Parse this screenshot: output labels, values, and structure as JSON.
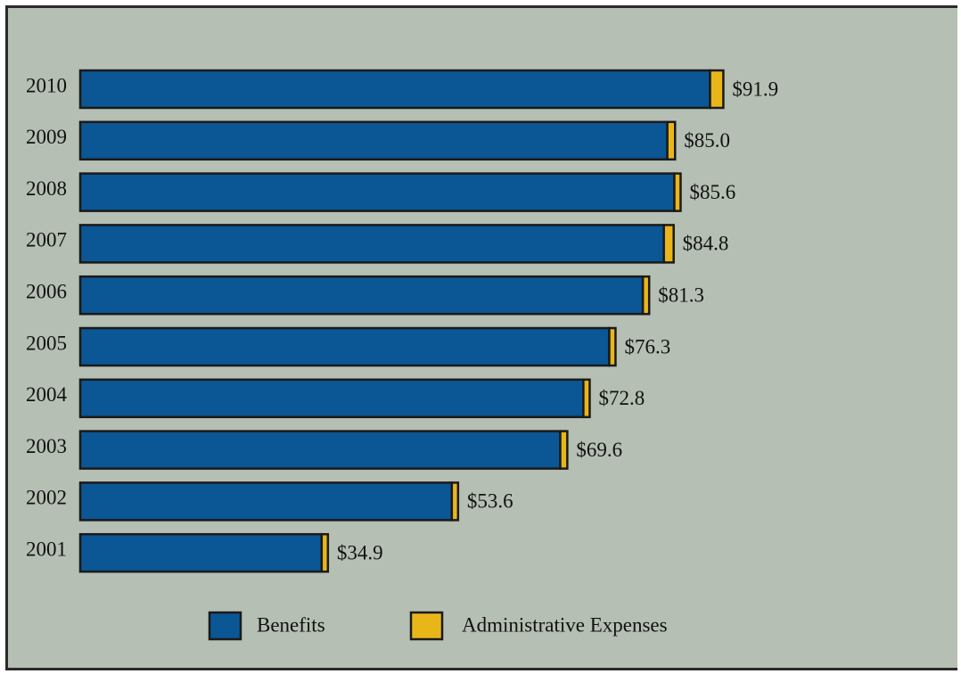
{
  "chart_data": {
    "type": "bar",
    "orientation": "horizontal",
    "stacked": true,
    "categories": [
      "2010",
      "2009",
      "2008",
      "2007",
      "2006",
      "2005",
      "2004",
      "2003",
      "2002",
      "2001"
    ],
    "series": [
      {
        "name": "Benefits",
        "values": [
          90.0,
          83.9,
          84.9,
          83.4,
          80.4,
          75.6,
          71.9,
          68.6,
          53.1,
          34.5
        ]
      },
      {
        "name": "Administrative Expenses",
        "values": [
          1.9,
          1.1,
          0.7,
          1.4,
          0.9,
          0.7,
          0.9,
          1.0,
          0.5,
          0.4
        ]
      }
    ],
    "data_labels": [
      "$91.9",
      "$85.0",
      "$85.6",
      "$84.8",
      "$81.3",
      "$76.3",
      "$72.8",
      "$69.6",
      "$53.6",
      "$34.9"
    ],
    "title": "",
    "xlabel": "",
    "ylabel": "",
    "xlim": [
      0,
      110
    ],
    "grid": false,
    "legend_position": "bottom-center",
    "colors": {
      "Benefits": "#0b5694",
      "Administrative Expenses": "#e9b61a",
      "background": "#b5bfb3",
      "outline": "#1a1a1a"
    }
  }
}
